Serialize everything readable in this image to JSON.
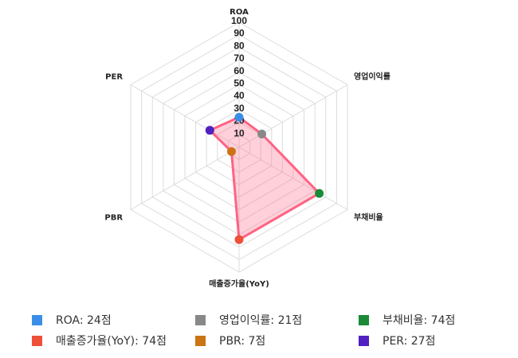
{
  "chart_data": {
    "type": "radar",
    "axes": [
      "ROA",
      "영업이익률",
      "부채비율",
      "매출증가율(YoY)",
      "PBR",
      "PER"
    ],
    "values": [
      24,
      21,
      74,
      74,
      7,
      27
    ],
    "rlim": [
      0,
      100
    ],
    "ticks": [
      "10",
      "20",
      "30",
      "40",
      "50",
      "60",
      "70",
      "80",
      "90",
      "100"
    ],
    "grid": true,
    "series_color": "#ff6384",
    "point_colors": [
      "#3b8ee8",
      "#888888",
      "#1a8a36",
      "#ee5038",
      "#cc7314",
      "#5020c0"
    ],
    "legend_placement": "bottom",
    "legend": [
      {
        "label": "ROA: 24점",
        "color": "#3b8ee8"
      },
      {
        "label": "영업이익률: 21점",
        "color": "#888888"
      },
      {
        "label": "부채비율: 74점",
        "color": "#1a8a36"
      },
      {
        "label": "매출증가율(YoY): 74점",
        "color": "#ee5038"
      },
      {
        "label": "PBR: 7점",
        "color": "#cc7314"
      },
      {
        "label": "PER: 27점",
        "color": "#5020c0"
      }
    ]
  }
}
